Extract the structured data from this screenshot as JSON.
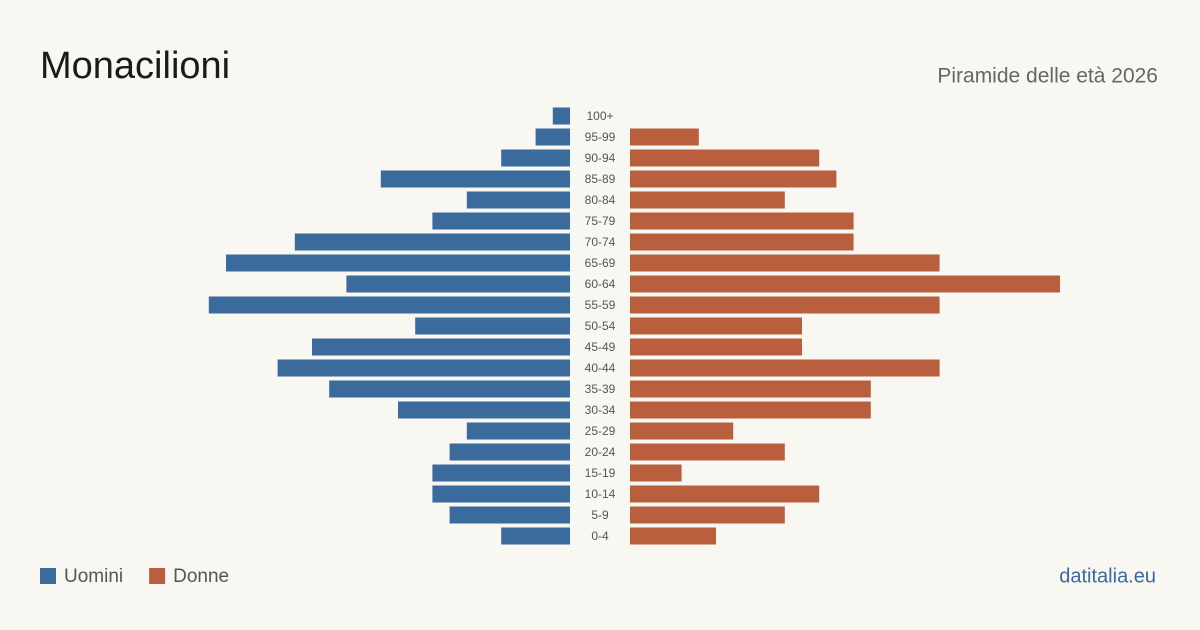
{
  "chart_data": {
    "type": "pyramid",
    "title": "Monacilioni",
    "subtitle": "Piramide delle età 2026",
    "source": "datitalia.eu",
    "categories": [
      "100+",
      "95-99",
      "90-94",
      "85-89",
      "80-84",
      "75-79",
      "70-74",
      "65-69",
      "60-64",
      "55-59",
      "50-54",
      "45-49",
      "40-44",
      "35-39",
      "30-34",
      "25-29",
      "20-24",
      "15-19",
      "10-14",
      "5-9",
      "0-4"
    ],
    "series": [
      {
        "name": "Uomini",
        "color": "#3b6a9c",
        "values": [
          1,
          2,
          4,
          11,
          6,
          8,
          16,
          20,
          13,
          21,
          9,
          15,
          17,
          14,
          10,
          6,
          7,
          8,
          8,
          7,
          4
        ]
      },
      {
        "name": "Donne",
        "color": "#b95f3e",
        "values": [
          0,
          4,
          11,
          12,
          9,
          13,
          13,
          18,
          25,
          18,
          10,
          10,
          18,
          14,
          14,
          6,
          9,
          3,
          11,
          9,
          5
        ]
      }
    ]
  }
}
